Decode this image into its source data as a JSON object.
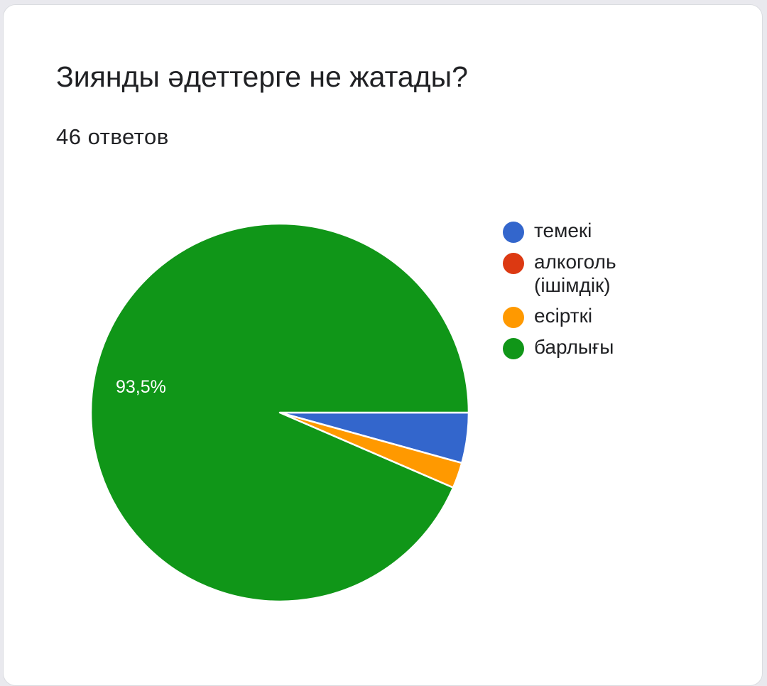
{
  "chart_data": {
    "type": "pie",
    "title": "Зиянды әдеттерге не жатады?",
    "subtitle": "46 ответов",
    "categories": [
      "темекі",
      "алкоголь (ішімдік)",
      "есірткі",
      "барлығы"
    ],
    "values": [
      4.3,
      0,
      2.2,
      93.5
    ],
    "colors": [
      "#3366cc",
      "#dc3912",
      "#ff9900",
      "#109618"
    ],
    "data_labels": [
      "",
      "",
      "",
      "93,5%"
    ],
    "legend_position": "right"
  }
}
